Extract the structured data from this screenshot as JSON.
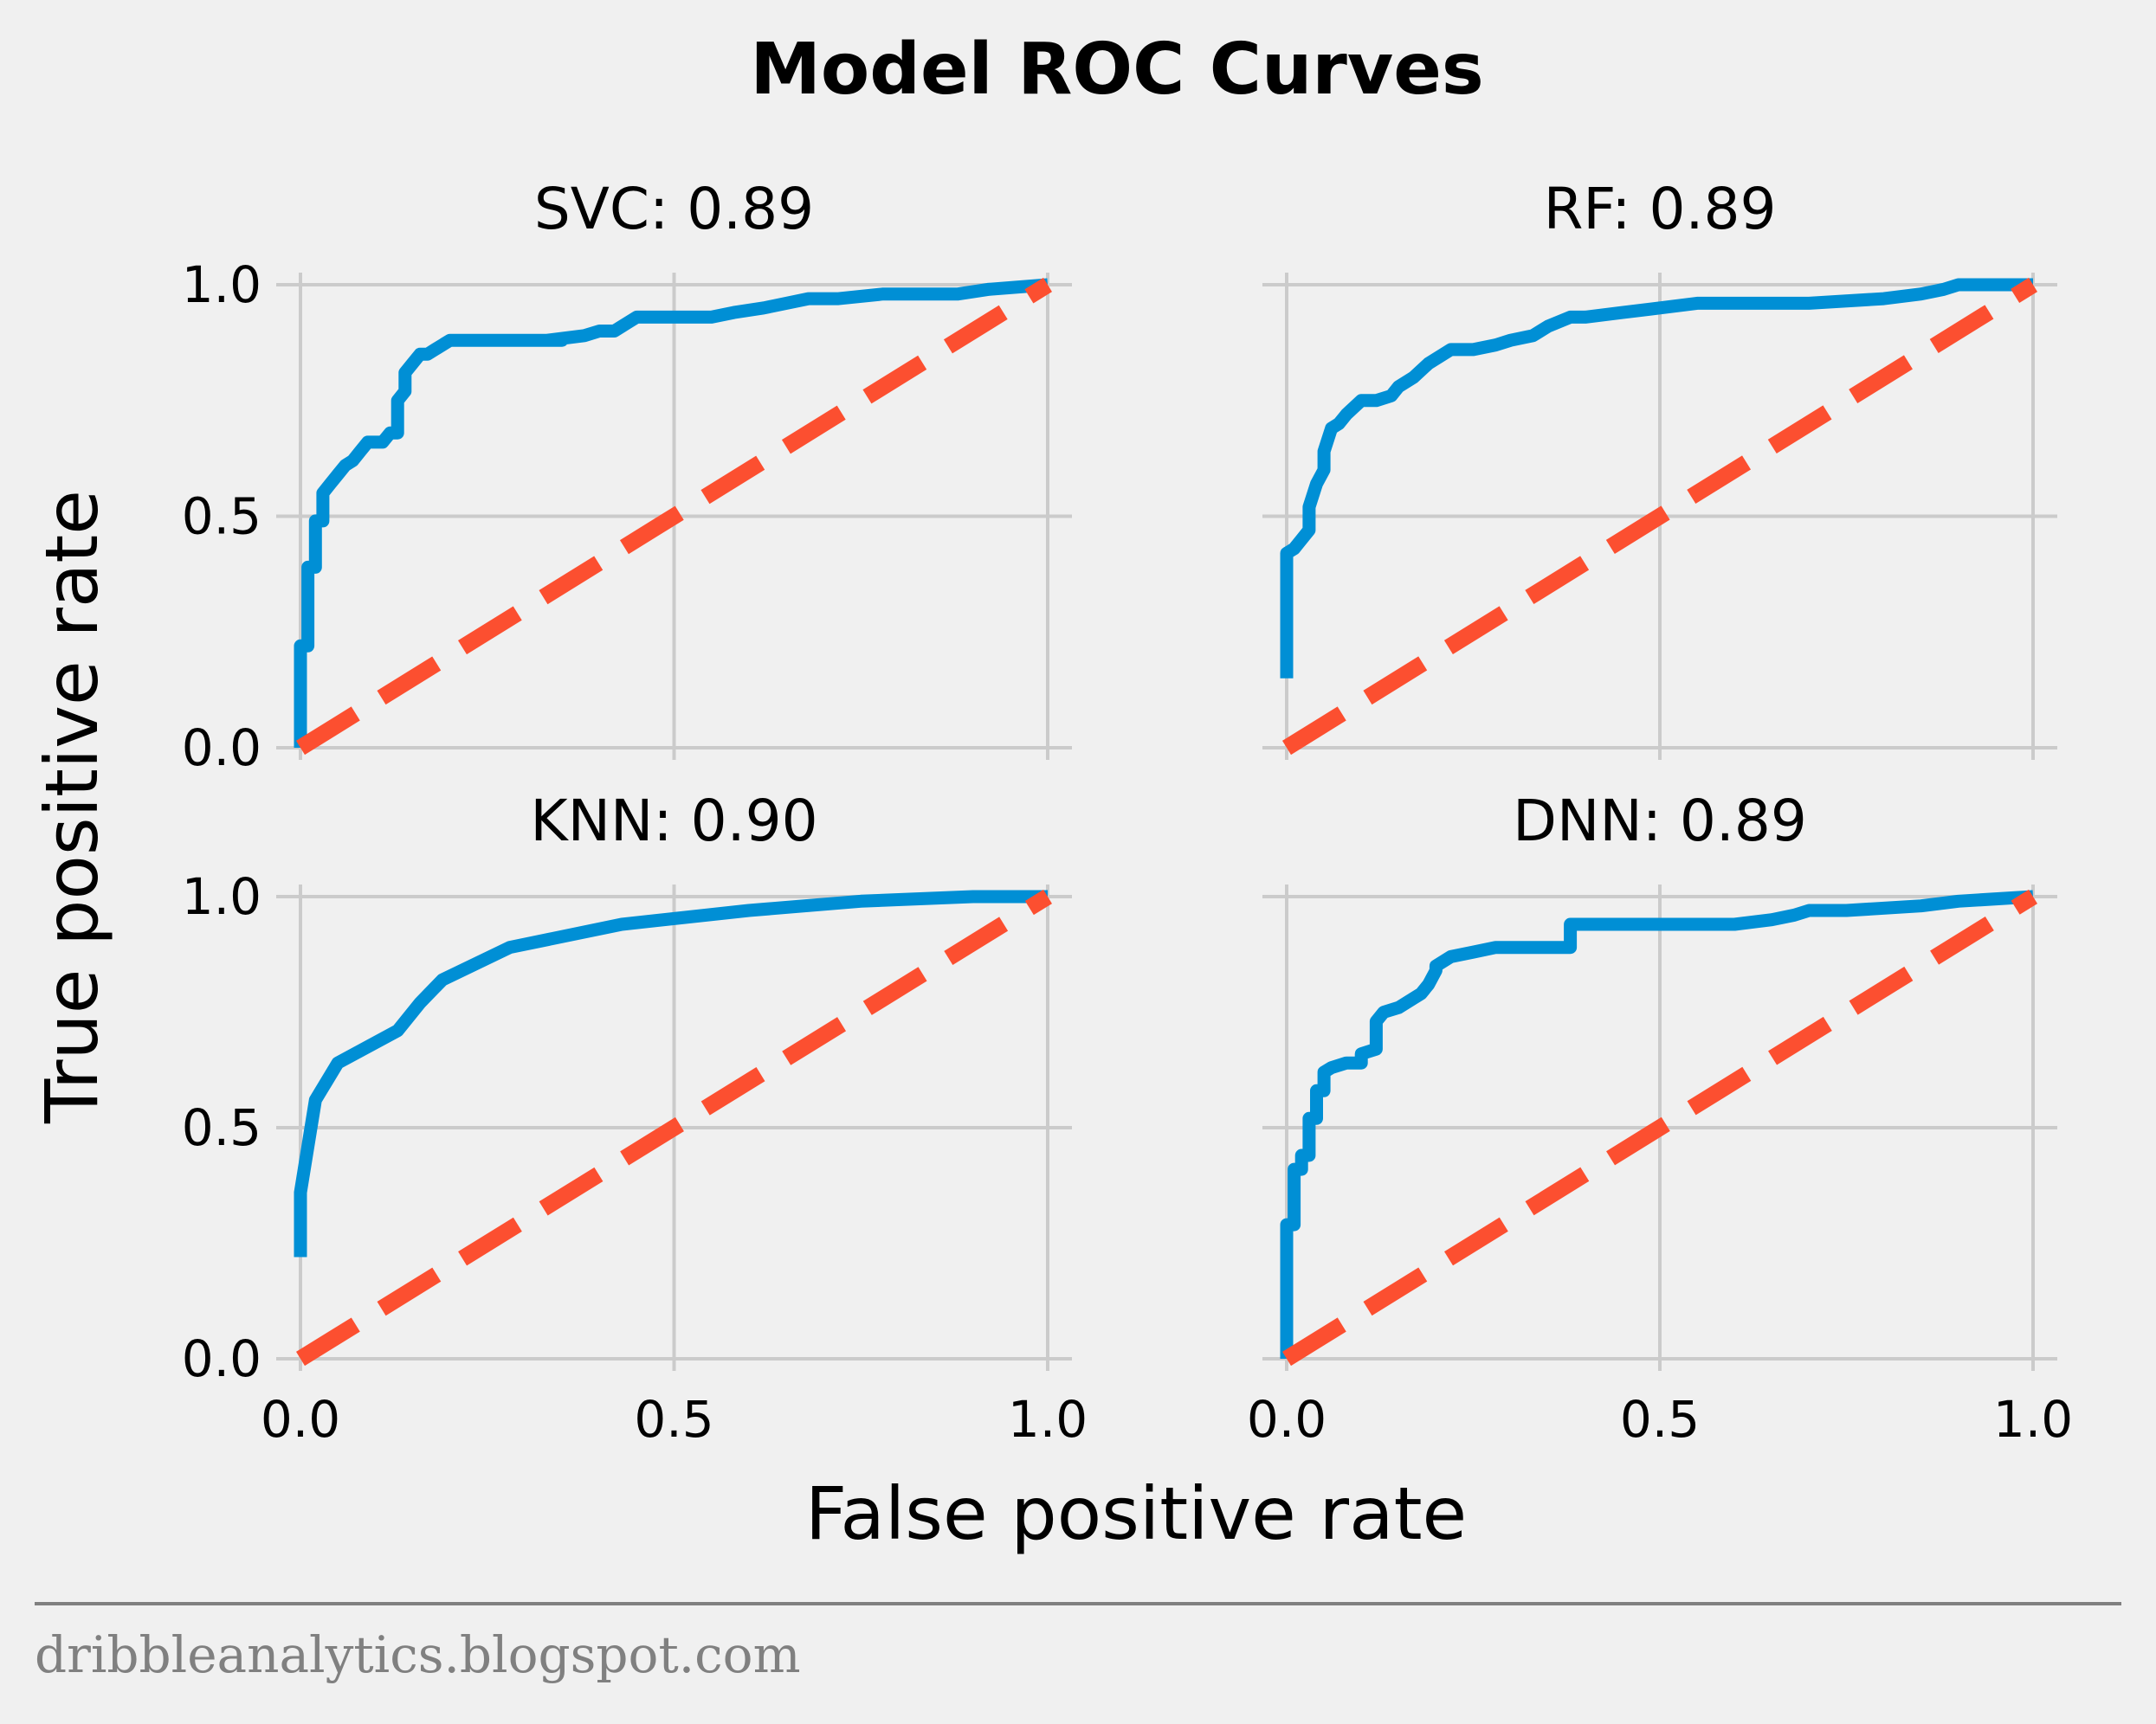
{
  "title": "Model ROC Curves",
  "xlabel": "False positive rate",
  "ylabel": "True positive rate",
  "watermark": "dribbleanalytics.blogspot.com",
  "colors": {
    "roc": "#008fd5",
    "diagonal": "#fc4f30",
    "grid": "#cbcbcb",
    "background": "#f0f0f0"
  },
  "chart_data": [
    {
      "type": "line",
      "title": "SVC: 0.89",
      "xlim": [
        0,
        1
      ],
      "ylim": [
        0,
        1
      ],
      "xticks": [
        "0.0",
        "0.5",
        "1.0"
      ],
      "yticks": [
        "0.0",
        "0.5",
        "1.0"
      ],
      "grid": true,
      "series": [
        {
          "role": "roc",
          "x": [
            0,
            0,
            0.01,
            0.01,
            0.02,
            0.02,
            0.03,
            0.03,
            0.04,
            0.05,
            0.06,
            0.07,
            0.08,
            0.09,
            0.1,
            0.11,
            0.12,
            0.13,
            0.13,
            0.14,
            0.14,
            0.15,
            0.16,
            0.17,
            0.18,
            0.2,
            0.22,
            0.25,
            0.3,
            0.35,
            0.33,
            0.38,
            0.4,
            0.42,
            0.43,
            0.45,
            0.5,
            0.55,
            0.58,
            0.62,
            0.68,
            0.72,
            0.78,
            0.84,
            0.88,
            0.92,
            1.0
          ],
          "y": [
            0,
            0.22,
            0.22,
            0.39,
            0.39,
            0.49,
            0.49,
            0.55,
            0.57,
            0.59,
            0.61,
            0.62,
            0.64,
            0.66,
            0.66,
            0.66,
            0.68,
            0.68,
            0.75,
            0.77,
            0.81,
            0.83,
            0.85,
            0.85,
            0.86,
            0.88,
            0.88,
            0.88,
            0.88,
            0.88,
            0.88,
            0.89,
            0.9,
            0.9,
            0.91,
            0.93,
            0.93,
            0.93,
            0.94,
            0.95,
            0.97,
            0.97,
            0.98,
            0.98,
            0.98,
            0.99,
            1.0
          ]
        },
        {
          "role": "baseline",
          "x": [
            0,
            1
          ],
          "y": [
            0,
            1
          ]
        }
      ]
    },
    {
      "type": "line",
      "title": "RF: 0.89",
      "xlim": [
        0,
        1
      ],
      "ylim": [
        0,
        1
      ],
      "xticks": [
        "0.0",
        "0.5",
        "1.0"
      ],
      "yticks": [
        "0.0",
        "0.5",
        "1.0"
      ],
      "grid": true,
      "series": [
        {
          "role": "roc",
          "x": [
            0,
            0,
            0.01,
            0.02,
            0.03,
            0.03,
            0.04,
            0.05,
            0.05,
            0.06,
            0.07,
            0.08,
            0.1,
            0.12,
            0.14,
            0.15,
            0.17,
            0.19,
            0.2,
            0.22,
            0.25,
            0.28,
            0.3,
            0.33,
            0.35,
            0.38,
            0.4,
            0.45,
            0.5,
            0.55,
            0.6,
            0.7,
            0.8,
            0.85,
            0.88,
            0.9,
            1.0
          ],
          "y": [
            0.15,
            0.42,
            0.43,
            0.45,
            0.47,
            0.52,
            0.57,
            0.6,
            0.64,
            0.69,
            0.7,
            0.72,
            0.75,
            0.75,
            0.76,
            0.78,
            0.8,
            0.83,
            0.84,
            0.86,
            0.86,
            0.87,
            0.88,
            0.89,
            0.91,
            0.93,
            0.93,
            0.94,
            0.95,
            0.96,
            0.96,
            0.96,
            0.97,
            0.98,
            0.99,
            1.0,
            1.0
          ]
        },
        {
          "role": "baseline",
          "x": [
            0,
            1
          ],
          "y": [
            0,
            1
          ]
        }
      ]
    },
    {
      "type": "line",
      "title": "KNN: 0.90",
      "xlim": [
        0,
        1
      ],
      "ylim": [
        0,
        1
      ],
      "xticks": [
        "0.0",
        "0.5",
        "1.0"
      ],
      "yticks": [
        "0.0",
        "0.5",
        "1.0"
      ],
      "grid": true,
      "series": [
        {
          "role": "roc",
          "x": [
            0,
            0,
            0.02,
            0.05,
            0.13,
            0.16,
            0.19,
            0.28,
            0.43,
            0.6,
            0.75,
            0.9,
            1.0
          ],
          "y": [
            0.22,
            0.36,
            0.56,
            0.64,
            0.71,
            0.77,
            0.82,
            0.89,
            0.94,
            0.97,
            0.99,
            1.0,
            1.0
          ]
        },
        {
          "role": "baseline",
          "x": [
            0,
            1
          ],
          "y": [
            0,
            1
          ]
        }
      ]
    },
    {
      "type": "line",
      "title": "DNN: 0.89",
      "xlim": [
        0,
        1
      ],
      "ylim": [
        0,
        1
      ],
      "xticks": [
        "0.0",
        "0.5",
        "1.0"
      ],
      "yticks": [
        "0.0",
        "0.5",
        "1.0"
      ],
      "grid": true,
      "series": [
        {
          "role": "roc",
          "x": [
            0,
            0,
            0.01,
            0.01,
            0.02,
            0.02,
            0.03,
            0.03,
            0.04,
            0.04,
            0.05,
            0.05,
            0.06,
            0.08,
            0.1,
            0.1,
            0.12,
            0.12,
            0.13,
            0.15,
            0.17,
            0.18,
            0.19,
            0.2,
            0.2,
            0.22,
            0.25,
            0.28,
            0.3,
            0.33,
            0.38,
            0.38,
            0.4,
            0.45,
            0.55,
            0.6,
            0.65,
            0.68,
            0.7,
            0.75,
            0.85,
            0.9,
            1.0
          ],
          "y": [
            0,
            0.29,
            0.29,
            0.41,
            0.41,
            0.44,
            0.44,
            0.52,
            0.52,
            0.58,
            0.58,
            0.62,
            0.63,
            0.64,
            0.64,
            0.66,
            0.67,
            0.73,
            0.75,
            0.76,
            0.78,
            0.79,
            0.81,
            0.84,
            0.85,
            0.87,
            0.88,
            0.89,
            0.89,
            0.89,
            0.89,
            0.94,
            0.94,
            0.94,
            0.94,
            0.94,
            0.95,
            0.96,
            0.97,
            0.97,
            0.98,
            0.99,
            1.0
          ]
        },
        {
          "role": "baseline",
          "x": [
            0,
            1
          ],
          "y": [
            0,
            1
          ]
        }
      ]
    }
  ]
}
